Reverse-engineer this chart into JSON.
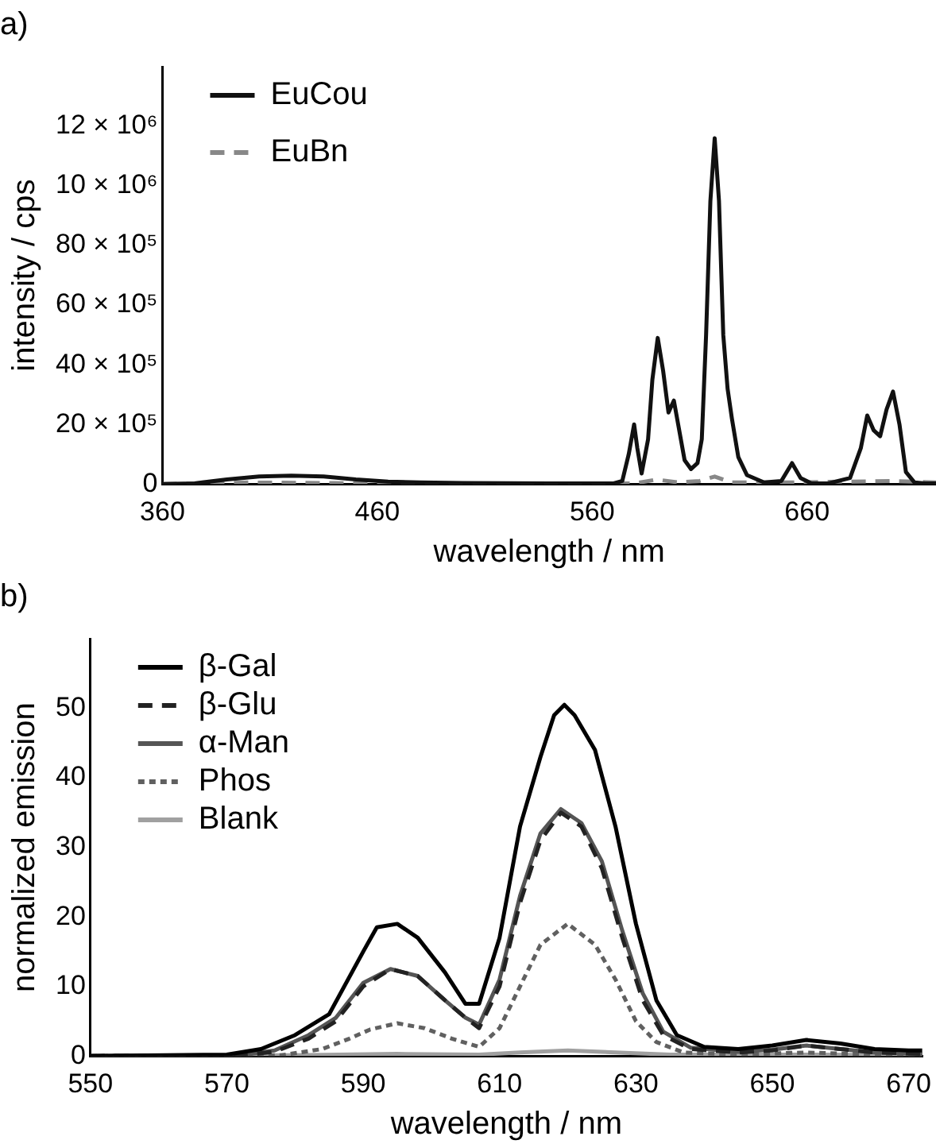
{
  "chart_data": [
    {
      "type": "line",
      "title": "a)",
      "xlabel": "wavelength / nm",
      "ylabel": "intensity / cps",
      "legend": "top left",
      "grid": false,
      "xlim": [
        360,
        720
      ],
      "xticks": [
        360,
        460,
        560,
        660
      ],
      "ylim": [
        0,
        14000000
      ],
      "yticks": [
        0,
        {
          "value": 2000000,
          "label": "20 × 10⁵"
        },
        {
          "value": 4000000,
          "label": "40 × 10⁵"
        },
        {
          "value": 6000000,
          "label": "60 × 10⁵"
        },
        {
          "value": 8000000,
          "label": "80 × 10⁵"
        },
        {
          "value": 10000000,
          "label": "10 × 10⁶"
        },
        {
          "value": 12000000,
          "label": "12 × 10⁶"
        }
      ],
      "series": [
        {
          "name": "EuCou",
          "color": "#111111",
          "line_style": "solid",
          "x": [
            360,
            375,
            390,
            405,
            420,
            435,
            450,
            465,
            480,
            500,
            540,
            570,
            574,
            577,
            579.5,
            581,
            583,
            586,
            588,
            590.5,
            593,
            595.5,
            598,
            600,
            603,
            606,
            609,
            611,
            613,
            615,
            617,
            619,
            621,
            623,
            625,
            628,
            632,
            640,
            648,
            653,
            657,
            662,
            670,
            680,
            685,
            688,
            691,
            694,
            697,
            700,
            703,
            706,
            710,
            715,
            720
          ],
          "values": [
            0,
            20000,
            150000,
            250000,
            280000,
            250000,
            150000,
            80000,
            50000,
            30000,
            20000,
            20000,
            100000,
            1000000,
            2000000,
            1200000,
            350000,
            1500000,
            3500000,
            4900000,
            3800000,
            2400000,
            2800000,
            2000000,
            800000,
            500000,
            700000,
            1500000,
            5000000,
            9500000,
            11600000,
            9500000,
            5000000,
            3200000,
            2200000,
            900000,
            300000,
            50000,
            100000,
            700000,
            200000,
            20000,
            20000,
            200000,
            1200000,
            2300000,
            1800000,
            1600000,
            2500000,
            3100000,
            2000000,
            400000,
            50000,
            20000,
            20000
          ]
        },
        {
          "name": "EuBn",
          "color": "#888888",
          "line_style": "dashed",
          "x": [
            360,
            400,
            440,
            500,
            580,
            590,
            600,
            610,
            617,
            625,
            650,
            700,
            720
          ],
          "values": [
            0,
            50000,
            30000,
            10000,
            20000,
            150000,
            50000,
            100000,
            250000,
            50000,
            50000,
            100000,
            50000
          ]
        }
      ]
    },
    {
      "type": "line",
      "title": "b)",
      "xlabel": "wavelength / nm",
      "ylabel": "normalized emission",
      "legend": "top left",
      "grid": false,
      "xlim": [
        550,
        672
      ],
      "xticks": [
        550,
        570,
        590,
        610,
        630,
        650,
        670
      ],
      "ylim": [
        0,
        60
      ],
      "yticks": [
        0,
        10,
        20,
        30,
        40,
        50
      ],
      "series": [
        {
          "name": "β-Gal",
          "color": "#000000",
          "line_style": "solid",
          "x": [
            550,
            570,
            575,
            580,
            585,
            590,
            592,
            595,
            598,
            602,
            605,
            607,
            610,
            613,
            616,
            618,
            619.5,
            621,
            624,
            627,
            630,
            633,
            636,
            640,
            645,
            650,
            655,
            660,
            665,
            670,
            672
          ],
          "values": [
            0,
            0.2,
            1,
            3,
            6,
            15,
            18.5,
            19,
            17,
            12,
            7.5,
            7.5,
            17,
            33,
            43,
            49,
            50.5,
            49,
            44,
            33,
            19,
            8,
            3,
            1.3,
            1,
            1.5,
            2.3,
            1.8,
            1,
            0.8,
            0.8
          ]
        },
        {
          "name": "β-Glu",
          "color": "#222222",
          "line_style": "dashed",
          "x": [
            550,
            572,
            577,
            582,
            586,
            590,
            594,
            598,
            602,
            605,
            607,
            610,
            613,
            616,
            619,
            622,
            625,
            628,
            631,
            634,
            638,
            645,
            650,
            655,
            660,
            665,
            672
          ],
          "values": [
            0,
            0.1,
            0.6,
            2.5,
            5,
            10,
            12.5,
            11.5,
            8,
            5.5,
            4,
            10,
            22,
            31,
            35,
            33,
            27,
            17,
            8,
            3,
            1,
            0.5,
            0.8,
            1.5,
            1,
            0.5,
            0.3
          ]
        },
        {
          "name": "α-Man",
          "color": "#555555",
          "line_style": "solid",
          "x": [
            550,
            572,
            577,
            582,
            586,
            590,
            594,
            598,
            602,
            605,
            607,
            610,
            613,
            616,
            619,
            622,
            625,
            628,
            631,
            634,
            638,
            645,
            650,
            655,
            660,
            665,
            672
          ],
          "values": [
            0,
            0.1,
            0.8,
            3,
            5.5,
            10.5,
            12.5,
            11.5,
            8,
            5.5,
            4.5,
            11,
            23,
            32,
            35.5,
            33.5,
            28,
            18,
            9,
            3.5,
            1.2,
            0.6,
            0.9,
            1.5,
            1,
            0.5,
            0.3
          ]
        },
        {
          "name": "Phos",
          "color": "#606060",
          "line_style": "dotted",
          "x": [
            550,
            578,
            584,
            588,
            591,
            595,
            599,
            603,
            607,
            610,
            613,
            616,
            620,
            624,
            627,
            630,
            633,
            637,
            645,
            655,
            665,
            672
          ],
          "values": [
            0,
            0.1,
            1,
            2.5,
            3.8,
            4.7,
            4,
            2.5,
            1.3,
            4,
            10,
            16,
            19,
            16,
            11,
            5,
            2,
            0.5,
            0.2,
            0.5,
            0.2,
            0.1
          ]
        },
        {
          "name": "Blank",
          "color": "#a0a0a0",
          "line_style": "solid",
          "x": [
            550,
            580,
            595,
            607,
            613,
            620,
            627,
            635,
            655,
            672
          ],
          "values": [
            0,
            0.1,
            0.3,
            0.2,
            0.5,
            0.8,
            0.5,
            0.2,
            0.2,
            0.1
          ]
        }
      ]
    }
  ]
}
